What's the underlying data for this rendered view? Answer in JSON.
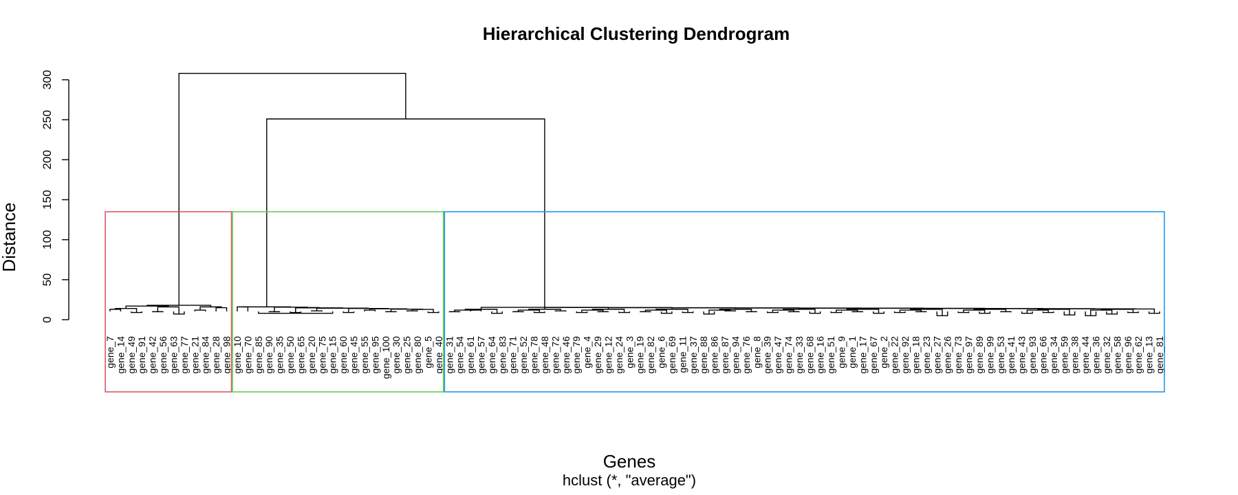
{
  "chart_data": {
    "type": "dendrogram",
    "title": "Hierarchical Clustering Dendrogram",
    "xlabel": "Genes",
    "ylabel": "Distance",
    "subtitle": "hclust (*, \"average\")",
    "ylim": [
      0,
      300
    ],
    "yticks": [
      0,
      50,
      100,
      150,
      200,
      250,
      300
    ],
    "leaves": [
      "gene_7",
      "gene_14",
      "gene_49",
      "gene_91",
      "gene_42",
      "gene_56",
      "gene_63",
      "gene_77",
      "gene_21",
      "gene_84",
      "gene_28",
      "gene_98",
      "gene_10",
      "gene_70",
      "gene_85",
      "gene_90",
      "gene_35",
      "gene_50",
      "gene_65",
      "gene_20",
      "gene_75",
      "gene_15",
      "gene_60",
      "gene_45",
      "gene_55",
      "gene_95",
      "gene_100",
      "gene_30",
      "gene_25",
      "gene_80",
      "gene_5",
      "gene_40",
      "gene_31",
      "gene_54",
      "gene_61",
      "gene_57",
      "gene_64",
      "gene_83",
      "gene_71",
      "gene_52",
      "gene_78",
      "gene_48",
      "gene_72",
      "gene_46",
      "gene_79",
      "gene_4",
      "gene_29",
      "gene_12",
      "gene_24",
      "gene_3",
      "gene_19",
      "gene_82",
      "gene_6",
      "gene_69",
      "gene_11",
      "gene_37",
      "gene_88",
      "gene_86",
      "gene_87",
      "gene_94",
      "gene_76",
      "gene_8",
      "gene_39",
      "gene_47",
      "gene_74",
      "gene_33",
      "gene_68",
      "gene_16",
      "gene_51",
      "gene_9",
      "gene_1",
      "gene_17",
      "gene_67",
      "gene_2",
      "gene_22",
      "gene_92",
      "gene_18",
      "gene_23",
      "gene_27",
      "gene_26",
      "gene_73",
      "gene_97",
      "gene_89",
      "gene_99",
      "gene_53",
      "gene_41",
      "gene_43",
      "gene_93",
      "gene_66",
      "gene_34",
      "gene_59",
      "gene_38",
      "gene_44",
      "gene_36",
      "gene_32",
      "gene_58",
      "gene_96",
      "gene_62",
      "gene_13",
      "gene_81"
    ],
    "merges": [
      [
        [
          0,
          1
        ],
        13
      ],
      [
        [
          2,
          3
        ],
        9
      ],
      [
        [
          4,
          5
        ],
        10
      ],
      [
        [
          6,
          7
        ],
        7
      ],
      [
        [
          9,
          8
        ],
        12
      ],
      [
        [
          10,
          11
        ],
        15
      ],
      [
        [
          0,
          3
        ],
        14
      ],
      [
        [
          1,
          2
        ],
        14
      ],
      [
        [
          4,
          5
        ],
        16
      ],
      [
        [
          6,
          7
        ],
        17
      ],
      [
        [
          12,
          13
        ],
        16
      ],
      [
        [
          15,
          16
        ],
        10
      ],
      [
        [
          17,
          18
        ],
        9
      ],
      [
        [
          14,
          21
        ],
        8
      ],
      [
        [
          19,
          20
        ],
        11
      ],
      [
        [
          22,
          23
        ],
        9
      ],
      [
        [
          24,
          25
        ],
        12
      ],
      [
        [
          26,
          27
        ],
        10
      ],
      [
        [
          28,
          29
        ],
        11
      ],
      [
        [
          30,
          31
        ],
        9
      ],
      [
        [
          32,
          33
        ],
        10
      ],
      [
        [
          34,
          35
        ],
        12
      ],
      [
        [
          36,
          37
        ],
        8
      ],
      [
        [
          38,
          39
        ],
        10
      ],
      [
        [
          40,
          41
        ],
        9
      ],
      [
        [
          42,
          43
        ],
        11
      ],
      [
        [
          44,
          45
        ],
        9
      ],
      [
        [
          46,
          47
        ],
        10
      ],
      [
        [
          48,
          49
        ],
        9
      ],
      [
        [
          50,
          51
        ],
        10
      ],
      [
        [
          52,
          53
        ],
        8
      ],
      [
        [
          54,
          55
        ],
        9
      ],
      [
        [
          56,
          57
        ],
        7
      ],
      [
        [
          58,
          59
        ],
        11
      ],
      [
        [
          60,
          61
        ],
        10
      ],
      [
        [
          62,
          63
        ],
        9
      ],
      [
        [
          64,
          65
        ],
        10
      ],
      [
        [
          66,
          67
        ],
        8
      ],
      [
        [
          68,
          69
        ],
        9
      ],
      [
        [
          70,
          71
        ],
        10
      ],
      [
        [
          72,
          73
        ],
        8
      ],
      [
        [
          74,
          75
        ],
        9
      ],
      [
        [
          76,
          77
        ],
        10
      ],
      [
        [
          78,
          79
        ],
        5
      ],
      [
        [
          80,
          81
        ],
        9
      ],
      [
        [
          82,
          83
        ],
        8
      ],
      [
        [
          84,
          85
        ],
        10
      ],
      [
        [
          86,
          87
        ],
        8
      ],
      [
        [
          88,
          89
        ],
        9
      ],
      [
        [
          90,
          91
        ],
        6
      ],
      [
        [
          92,
          93
        ],
        5
      ],
      [
        [
          94,
          95
        ],
        7
      ],
      [
        [
          96,
          97
        ],
        9
      ],
      [
        [
          98,
          99
        ],
        8
      ]
    ],
    "top_merges": [
      {
        "left": [
          0,
          11
        ],
        "height": 17
      },
      {
        "left": [
          12,
          31
        ],
        "height": 16
      },
      {
        "left": [
          32,
          99
        ],
        "height": 17
      },
      {
        "join": "green+blue",
        "height": 251
      },
      {
        "join": "red+rest",
        "height": 308
      }
    ],
    "clusters": [
      {
        "range": [
          0,
          11
        ],
        "color": "#DF536B"
      },
      {
        "range": [
          12,
          31
        ],
        "color": "#61D04F"
      },
      {
        "range": [
          32,
          99
        ],
        "color": "#2297E6"
      }
    ],
    "cluster_cut_height": 135
  }
}
